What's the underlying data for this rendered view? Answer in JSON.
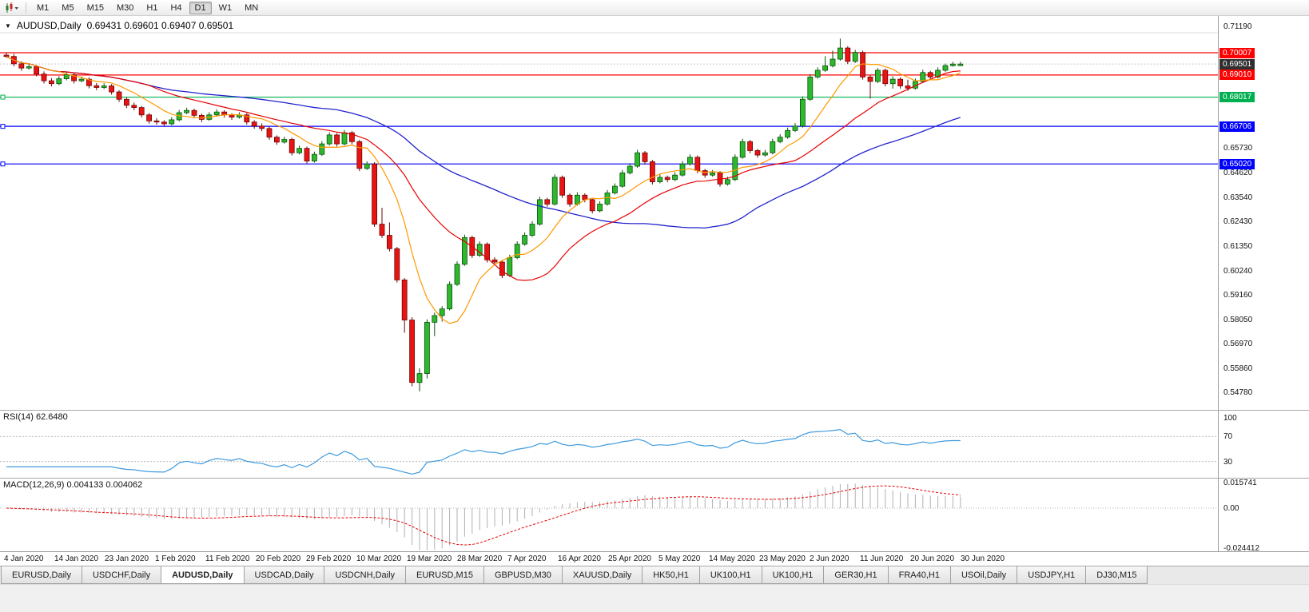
{
  "toolbar": {
    "timeframes": [
      "M1",
      "M5",
      "M15",
      "M30",
      "H1",
      "H4",
      "D1",
      "W1",
      "MN"
    ],
    "active_timeframe": "D1"
  },
  "chart_header": {
    "symbol_title": "AUDUSD,Daily",
    "ohlc": "0.69431 0.69601 0.69407 0.69501"
  },
  "price_axis": {
    "ticks": [
      "0.71190",
      "0.65730",
      "0.64620",
      "0.63540",
      "0.62430",
      "0.61350",
      "0.60240",
      "0.59160",
      "0.58050",
      "0.56970",
      "0.55860",
      "0.54780"
    ]
  },
  "chart_data": {
    "type": "candlestick",
    "symbol": "AUDUSD",
    "period": "Daily",
    "title": "AUDUSD,Daily",
    "up_color": "#2eb82e",
    "down_color": "#e81414",
    "ylim": [
      0.5403,
      0.7166
    ],
    "x_labels": [
      "4 Jan 2020",
      "14 Jan 2020",
      "23 Jan 2020",
      "1 Feb 2020",
      "11 Feb 2020",
      "20 Feb 2020",
      "29 Feb 2020",
      "10 Mar 2020",
      "19 Mar 2020",
      "28 Mar 2020",
      "7 Apr 2020",
      "16 Apr 2020",
      "25 Apr 2020",
      "5 May 2020",
      "14 May 2020",
      "23 May 2020",
      "2 Jun 2020",
      "11 Jun 2020",
      "20 Jun 2020",
      "30 Jun 2020"
    ],
    "y_ticks_visible": [
      0.7119,
      0.6573,
      0.6462,
      0.6354,
      0.6243,
      0.6135,
      0.6024,
      0.5916,
      0.5805,
      0.5697,
      0.5586,
      0.5478
    ],
    "horizontal_lines": [
      {
        "price": 0.70007,
        "label": "0.70007",
        "color": "#ff0000"
      },
      {
        "price": 0.6901,
        "label": "0.69010",
        "color": "#ff0000"
      },
      {
        "price": 0.68017,
        "label": "0.68017",
        "color": "#00b050"
      },
      {
        "price": 0.66706,
        "label": "0.66706",
        "color": "#0000ff"
      },
      {
        "price": 0.6502,
        "label": "0.65020",
        "color": "#0000ff"
      }
    ],
    "current_price": {
      "value": 0.69501,
      "label": "0.69501",
      "color": "#2f2f2f"
    },
    "moving_average_colors": {
      "fast": "#ff9900",
      "medium": "#e60000",
      "slow": "#2121cc"
    },
    "indicators": [
      {
        "type": "rsi",
        "label": "RSI(14) 62.6480",
        "ticks": [
          "100",
          "70",
          "30"
        ],
        "levels": [
          70,
          30
        ],
        "line_color": "#3e9ade"
      },
      {
        "type": "macd",
        "label": "MACD(12,26,9) 0.004133 0.004062",
        "ticks": [
          "0.015741",
          "0.00",
          "-0.024412"
        ],
        "histogram_color": "#b0b0b0",
        "signal_color": "#e60000"
      }
    ],
    "candles": [
      [
        0.699,
        0.7002,
        0.6978,
        0.6984
      ],
      [
        0.6984,
        0.6996,
        0.694,
        0.6951
      ],
      [
        0.6951,
        0.6962,
        0.692,
        0.6932
      ],
      [
        0.6932,
        0.695,
        0.6925,
        0.6938
      ],
      [
        0.6938,
        0.6945,
        0.6895,
        0.6905
      ],
      [
        0.6905,
        0.6917,
        0.6863,
        0.6875
      ],
      [
        0.6875,
        0.6887,
        0.685,
        0.6862
      ],
      [
        0.6862,
        0.6896,
        0.6855,
        0.6884
      ],
      [
        0.6884,
        0.6914,
        0.6877,
        0.6902
      ],
      [
        0.6902,
        0.6909,
        0.6863,
        0.6875
      ],
      [
        0.6875,
        0.6894,
        0.6868,
        0.6882
      ],
      [
        0.6882,
        0.689,
        0.6841,
        0.6853
      ],
      [
        0.6853,
        0.6865,
        0.6833,
        0.6845
      ],
      [
        0.6845,
        0.6864,
        0.6838,
        0.6852
      ],
      [
        0.6852,
        0.686,
        0.6813,
        0.6825
      ],
      [
        0.6825,
        0.6833,
        0.678,
        0.6792
      ],
      [
        0.6792,
        0.68,
        0.6753,
        0.6765
      ],
      [
        0.6765,
        0.6777,
        0.6743,
        0.6755
      ],
      [
        0.6755,
        0.6762,
        0.671,
        0.6722
      ],
      [
        0.6722,
        0.673,
        0.6683,
        0.6695
      ],
      [
        0.6695,
        0.6707,
        0.6678,
        0.669
      ],
      [
        0.669,
        0.6698,
        0.667,
        0.6682
      ],
      [
        0.6682,
        0.6712,
        0.6675,
        0.67
      ],
      [
        0.67,
        0.6744,
        0.6693,
        0.6732
      ],
      [
        0.6732,
        0.6754,
        0.6725,
        0.6742
      ],
      [
        0.6742,
        0.675,
        0.6708,
        0.672
      ],
      [
        0.672,
        0.6728,
        0.669,
        0.6702
      ],
      [
        0.6702,
        0.6734,
        0.6695,
        0.6722
      ],
      [
        0.6722,
        0.6747,
        0.6715,
        0.6735
      ],
      [
        0.6735,
        0.6743,
        0.671,
        0.6722
      ],
      [
        0.6722,
        0.673,
        0.67,
        0.6712
      ],
      [
        0.6712,
        0.6734,
        0.6705,
        0.6722
      ],
      [
        0.6722,
        0.673,
        0.6678,
        0.669
      ],
      [
        0.669,
        0.6698,
        0.666,
        0.6672
      ],
      [
        0.6672,
        0.6684,
        0.6649,
        0.6661
      ],
      [
        0.6661,
        0.6669,
        0.661,
        0.6622
      ],
      [
        0.6622,
        0.663,
        0.6588,
        0.66
      ],
      [
        0.66,
        0.6624,
        0.6593,
        0.6612
      ],
      [
        0.6612,
        0.662,
        0.654,
        0.6552
      ],
      [
        0.6552,
        0.6584,
        0.6545,
        0.6572
      ],
      [
        0.6572,
        0.658,
        0.6503,
        0.6515
      ],
      [
        0.6515,
        0.6557,
        0.6508,
        0.6545
      ],
      [
        0.6545,
        0.6604,
        0.6538,
        0.6592
      ],
      [
        0.6592,
        0.6644,
        0.6585,
        0.6632
      ],
      [
        0.6632,
        0.664,
        0.658,
        0.6592
      ],
      [
        0.6592,
        0.6654,
        0.6585,
        0.6642
      ],
      [
        0.6642,
        0.665,
        0.659,
        0.6602
      ],
      [
        0.6602,
        0.661,
        0.647,
        0.6482
      ],
      [
        0.6482,
        0.6514,
        0.6475,
        0.6502
      ],
      [
        0.6502,
        0.651,
        0.622,
        0.6232
      ],
      [
        0.6232,
        0.6305,
        0.617,
        0.6182
      ],
      [
        0.6182,
        0.624,
        0.611,
        0.6122
      ],
      [
        0.6122,
        0.613,
        0.597,
        0.5982
      ],
      [
        0.5982,
        0.599,
        0.5745,
        0.5802
      ],
      [
        0.5802,
        0.5815,
        0.5505,
        0.5522
      ],
      [
        0.5522,
        0.5585,
        0.5482,
        0.5562
      ],
      [
        0.5562,
        0.5805,
        0.554,
        0.5792
      ],
      [
        0.5792,
        0.5835,
        0.573,
        0.5822
      ],
      [
        0.5822,
        0.5864,
        0.5795,
        0.5852
      ],
      [
        0.5852,
        0.5975,
        0.5845,
        0.5962
      ],
      [
        0.5962,
        0.6065,
        0.5955,
        0.6052
      ],
      [
        0.6052,
        0.6185,
        0.6045,
        0.6172
      ],
      [
        0.6172,
        0.618,
        0.608,
        0.6092
      ],
      [
        0.6092,
        0.6155,
        0.6085,
        0.6142
      ],
      [
        0.6142,
        0.615,
        0.606,
        0.6072
      ],
      [
        0.6072,
        0.6084,
        0.605,
        0.6062
      ],
      [
        0.6062,
        0.607,
        0.599,
        0.6002
      ],
      [
        0.6002,
        0.6095,
        0.5995,
        0.6082
      ],
      [
        0.6082,
        0.6155,
        0.6075,
        0.6142
      ],
      [
        0.6142,
        0.6195,
        0.6135,
        0.6182
      ],
      [
        0.6182,
        0.6245,
        0.6175,
        0.6232
      ],
      [
        0.6232,
        0.6355,
        0.6225,
        0.6342
      ],
      [
        0.6342,
        0.635,
        0.631,
        0.6322
      ],
      [
        0.6322,
        0.6455,
        0.6315,
        0.6442
      ],
      [
        0.6442,
        0.645,
        0.635,
        0.6362
      ],
      [
        0.6362,
        0.637,
        0.631,
        0.6322
      ],
      [
        0.6322,
        0.6375,
        0.6315,
        0.6362
      ],
      [
        0.6362,
        0.637,
        0.633,
        0.6342
      ],
      [
        0.6342,
        0.635,
        0.628,
        0.6292
      ],
      [
        0.6292,
        0.6335,
        0.6285,
        0.6322
      ],
      [
        0.6322,
        0.6385,
        0.6315,
        0.6372
      ],
      [
        0.6372,
        0.6415,
        0.6365,
        0.6402
      ],
      [
        0.6402,
        0.6475,
        0.6395,
        0.6462
      ],
      [
        0.6462,
        0.6505,
        0.6455,
        0.6492
      ],
      [
        0.6492,
        0.6565,
        0.6485,
        0.6552
      ],
      [
        0.6552,
        0.656,
        0.65,
        0.6512
      ],
      [
        0.6512,
        0.652,
        0.641,
        0.6422
      ],
      [
        0.6422,
        0.6455,
        0.6415,
        0.6442
      ],
      [
        0.6442,
        0.645,
        0.642,
        0.6432
      ],
      [
        0.6432,
        0.6465,
        0.6425,
        0.6452
      ],
      [
        0.6452,
        0.6515,
        0.6445,
        0.6502
      ],
      [
        0.6502,
        0.6545,
        0.6495,
        0.6532
      ],
      [
        0.6532,
        0.654,
        0.646,
        0.6472
      ],
      [
        0.6472,
        0.648,
        0.644,
        0.6452
      ],
      [
        0.6452,
        0.6475,
        0.6445,
        0.6462
      ],
      [
        0.6462,
        0.647,
        0.64,
        0.6412
      ],
      [
        0.6412,
        0.6445,
        0.6405,
        0.6432
      ],
      [
        0.6432,
        0.6545,
        0.6425,
        0.6532
      ],
      [
        0.6532,
        0.6615,
        0.6525,
        0.6602
      ],
      [
        0.6602,
        0.661,
        0.655,
        0.6562
      ],
      [
        0.6562,
        0.657,
        0.653,
        0.6542
      ],
      [
        0.6542,
        0.6565,
        0.6535,
        0.6552
      ],
      [
        0.6552,
        0.6615,
        0.6545,
        0.6602
      ],
      [
        0.6602,
        0.6635,
        0.6595,
        0.6622
      ],
      [
        0.6622,
        0.6665,
        0.6615,
        0.6652
      ],
      [
        0.6652,
        0.6685,
        0.6645,
        0.6672
      ],
      [
        0.6672,
        0.6805,
        0.6665,
        0.6792
      ],
      [
        0.6792,
        0.6905,
        0.6785,
        0.6892
      ],
      [
        0.6892,
        0.6935,
        0.6885,
        0.6922
      ],
      [
        0.6922,
        0.6985,
        0.6915,
        0.6942
      ],
      [
        0.6942,
        0.701,
        0.6935,
        0.6972
      ],
      [
        0.6972,
        0.7064,
        0.6965,
        0.7022
      ],
      [
        0.7022,
        0.703,
        0.695,
        0.6962
      ],
      [
        0.6962,
        0.7013,
        0.6955,
        0.7002
      ],
      [
        0.7002,
        0.701,
        0.688,
        0.6892
      ],
      [
        0.6892,
        0.69,
        0.6795,
        0.6872
      ],
      [
        0.6872,
        0.6932,
        0.6865,
        0.6922
      ],
      [
        0.6922,
        0.693,
        0.685,
        0.6862
      ],
      [
        0.6862,
        0.6895,
        0.684,
        0.6882
      ],
      [
        0.6882,
        0.689,
        0.684,
        0.6852
      ],
      [
        0.6852,
        0.688,
        0.683,
        0.6842
      ],
      [
        0.6842,
        0.6885,
        0.6835,
        0.6872
      ],
      [
        0.6872,
        0.6925,
        0.6865,
        0.6912
      ],
      [
        0.6912,
        0.692,
        0.688,
        0.6892
      ],
      [
        0.6892,
        0.6935,
        0.6885,
        0.6922
      ],
      [
        0.6922,
        0.6952,
        0.6915,
        0.6943
      ],
      [
        0.6943,
        0.696,
        0.6938,
        0.695
      ],
      [
        0.69431,
        0.69601,
        0.69407,
        0.69501
      ]
    ]
  },
  "date_axis": {
    "labels": [
      "4 Jan 2020",
      "14 Jan 2020",
      "23 Jan 2020",
      "1 Feb 2020",
      "11 Feb 2020",
      "20 Feb 2020",
      "29 Feb 2020",
      "10 Mar 2020",
      "19 Mar 2020",
      "28 Mar 2020",
      "7 Apr 2020",
      "16 Apr 2020",
      "25 Apr 2020",
      "5 May 2020",
      "14 May 2020",
      "23 May 2020",
      "2 Jun 2020",
      "11 Jun 2020",
      "20 Jun 2020",
      "30 Jun 2020"
    ]
  },
  "tab_bar": {
    "tabs": [
      "EURUSD,Daily",
      "USDCHF,Daily",
      "AUDUSD,Daily",
      "USDCAD,Daily",
      "USDCNH,Daily",
      "EURUSD,M15",
      "GBPUSD,M30",
      "XAUUSD,Daily",
      "HK50,H1",
      "UK100,H1",
      "UK100,H1",
      "GER30,H1",
      "FRA40,H1",
      "USOil,Daily",
      "USDJPY,H1",
      "DJ30,M15"
    ],
    "active_tab_index": 2
  }
}
